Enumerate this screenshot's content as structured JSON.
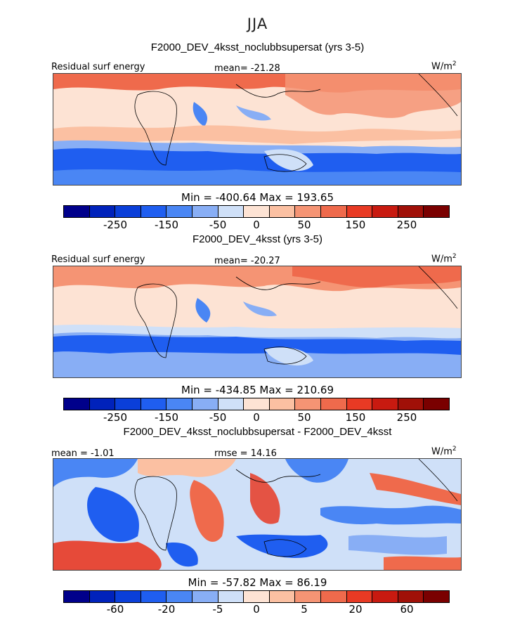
{
  "season": "JJA",
  "units": "W/m",
  "units_sup": "2",
  "colorbar_colors": [
    "#00008b",
    "#0022bb",
    "#0a3fd9",
    "#1f5ef0",
    "#4a86f4",
    "#88aef5",
    "#cfe0f8",
    "#fde3d4",
    "#fbc0a2",
    "#f59474",
    "#ef6a4c",
    "#e83a24",
    "#c81a10",
    "#a01008",
    "#7a0000"
  ],
  "panels": [
    {
      "title": "F2000_DEV_4ksst_noclubbsupersat (yrs 3-5)",
      "left_label": "Residual surf energy",
      "center_label": "mean= -21.28",
      "min_max": "Min = -400.64  Max = 193.65",
      "ticks": [
        "-250",
        "-150",
        "-50",
        "0",
        "50",
        "150",
        "250"
      ]
    },
    {
      "title": "F2000_DEV_4ksst (yrs 3-5)",
      "left_label": "Residual surf energy",
      "center_label": "mean= -20.27",
      "min_max": "Min = -434.85  Max = 210.69",
      "ticks": [
        "-250",
        "-150",
        "-50",
        "0",
        "50",
        "150",
        "250"
      ]
    },
    {
      "title": "F2000_DEV_4ksst_noclubbsupersat - F2000_DEV_4ksst",
      "left_label": "mean =  -1.01",
      "center_label": "rmse =  14.16",
      "min_max": "Min = -57.82  Max =  86.19",
      "ticks": [
        "-60",
        "-20",
        "-5",
        "0",
        "5",
        "20",
        "60"
      ]
    }
  ]
}
